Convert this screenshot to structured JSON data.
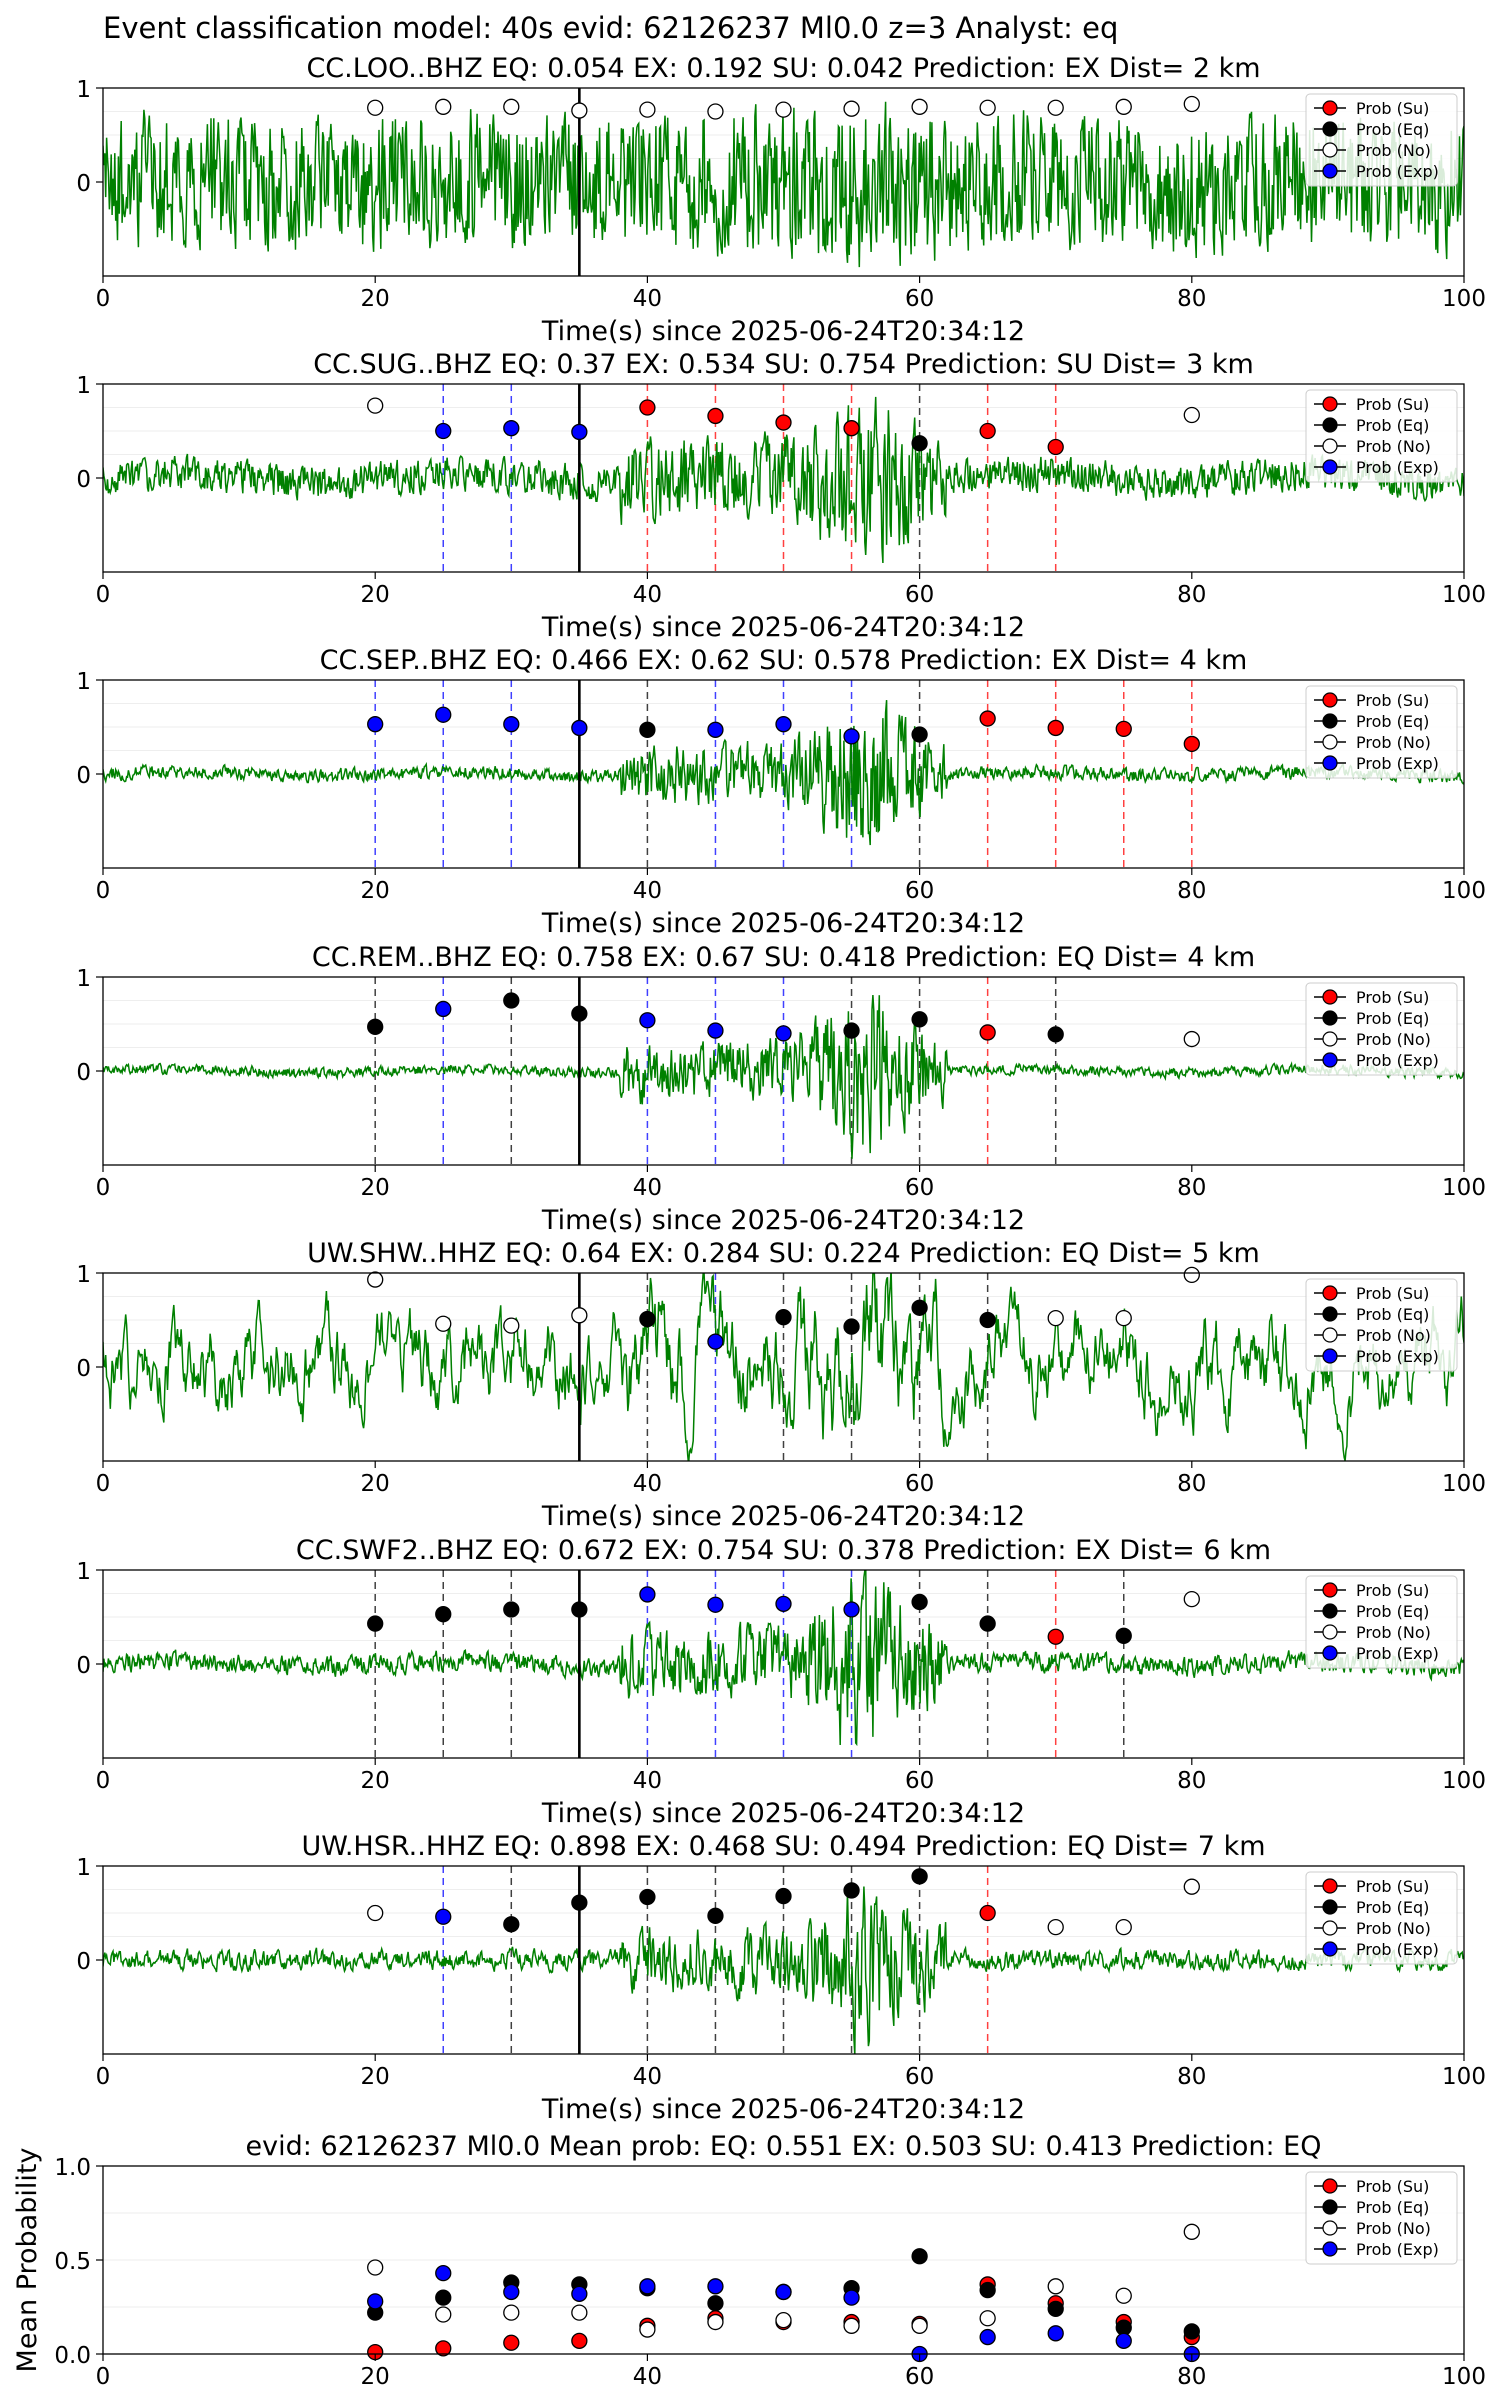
{
  "figure": {
    "suptitle": "Event classification model: 40s evid: 62126237 Ml0.0 z=3 Analyst: eq"
  },
  "chart_data": {
    "type": "line",
    "xlim": [
      0,
      100
    ],
    "xticks": [
      0,
      20,
      40,
      60,
      80,
      100
    ],
    "colors": {
      "Su": "#ff0000",
      "Eq": "#000000",
      "No": "#ffffff",
      "Exp": "#0000ff",
      "waveform": "#008000",
      "origin_line": "#000000"
    },
    "legend": {
      "position": "upper-right",
      "entries": [
        {
          "key": "Su",
          "label": "Prob (Su)"
        },
        {
          "key": "Eq",
          "label": "Prob (Eq)"
        },
        {
          "key": "No",
          "label": "Prob (No)"
        },
        {
          "key": "Exp",
          "label": "Prob (Exp)"
        }
      ]
    },
    "origin_time_s": 35,
    "station_panels": [
      {
        "title": "CC.LOO..BHZ   EQ: 0.054  EX: 0.192  SU: 0.042   Prediction: EX    Dist= 2 km",
        "xlabel": "Time(s) since 2025-06-24T20:34:12",
        "ylim": [
          -1,
          1
        ],
        "yticks": [
          0,
          1
        ],
        "waveform": {
          "noise": 0.75,
          "event": 0.15,
          "trend": 0.05,
          "smooth": 0.2
        },
        "points": [
          {
            "t": 20,
            "cls": "No",
            "p": 0.79
          },
          {
            "t": 25,
            "cls": "No",
            "p": 0.8
          },
          {
            "t": 30,
            "cls": "No",
            "p": 0.8
          },
          {
            "t": 35,
            "cls": "No",
            "p": 0.76
          },
          {
            "t": 40,
            "cls": "No",
            "p": 0.77
          },
          {
            "t": 45,
            "cls": "No",
            "p": 0.75
          },
          {
            "t": 50,
            "cls": "No",
            "p": 0.77
          },
          {
            "t": 55,
            "cls": "No",
            "p": 0.78
          },
          {
            "t": 60,
            "cls": "No",
            "p": 0.8
          },
          {
            "t": 65,
            "cls": "No",
            "p": 0.79
          },
          {
            "t": 70,
            "cls": "No",
            "p": 0.79
          },
          {
            "t": 75,
            "cls": "No",
            "p": 0.8
          },
          {
            "t": 80,
            "cls": "No",
            "p": 0.83
          }
        ]
      },
      {
        "title": "CC.SUG..BHZ   EQ: 0.37  EX: 0.534  SU: 0.754   Prediction: SU    Dist= 3 km",
        "xlabel": "Time(s) since 2025-06-24T20:34:12",
        "ylim": [
          -1,
          1
        ],
        "yticks": [
          0,
          1
        ],
        "waveform": {
          "noise": 0.2,
          "event": 0.55,
          "trend": 0.05,
          "smooth": 0.3
        },
        "points": [
          {
            "t": 20,
            "cls": "No",
            "p": 0.77
          },
          {
            "t": 25,
            "cls": "Exp",
            "p": 0.5
          },
          {
            "t": 30,
            "cls": "Exp",
            "p": 0.53
          },
          {
            "t": 35,
            "cls": "Exp",
            "p": 0.49
          },
          {
            "t": 40,
            "cls": "Su",
            "p": 0.75
          },
          {
            "t": 45,
            "cls": "Su",
            "p": 0.66
          },
          {
            "t": 50,
            "cls": "Su",
            "p": 0.59
          },
          {
            "t": 55,
            "cls": "Su",
            "p": 0.53
          },
          {
            "t": 60,
            "cls": "Eq",
            "p": 0.37
          },
          {
            "t": 65,
            "cls": "Su",
            "p": 0.5
          },
          {
            "t": 70,
            "cls": "Su",
            "p": 0.33
          },
          {
            "t": 80,
            "cls": "No",
            "p": 0.67
          }
        ]
      },
      {
        "title": "CC.SEP..BHZ   EQ: 0.466  EX: 0.62  SU: 0.578   Prediction: EX    Dist= 4 km",
        "xlabel": "Time(s) since 2025-06-24T20:34:12",
        "ylim": [
          -1,
          1
        ],
        "yticks": [
          0,
          1
        ],
        "waveform": {
          "noise": 0.08,
          "event": 0.6,
          "trend": 0.02,
          "smooth": 0.35
        },
        "points": [
          {
            "t": 20,
            "cls": "Exp",
            "p": 0.53
          },
          {
            "t": 25,
            "cls": "Exp",
            "p": 0.63
          },
          {
            "t": 30,
            "cls": "Exp",
            "p": 0.53
          },
          {
            "t": 35,
            "cls": "Exp",
            "p": 0.49
          },
          {
            "t": 40,
            "cls": "Eq",
            "p": 0.47
          },
          {
            "t": 45,
            "cls": "Exp",
            "p": 0.47
          },
          {
            "t": 50,
            "cls": "Exp",
            "p": 0.53
          },
          {
            "t": 55,
            "cls": "Exp",
            "p": 0.4
          },
          {
            "t": 60,
            "cls": "Eq",
            "p": 0.42
          },
          {
            "t": 65,
            "cls": "Su",
            "p": 0.59
          },
          {
            "t": 70,
            "cls": "Su",
            "p": 0.49
          },
          {
            "t": 75,
            "cls": "Su",
            "p": 0.48
          },
          {
            "t": 80,
            "cls": "Su",
            "p": 0.32
          }
        ]
      },
      {
        "title": "CC.REM..BHZ   EQ: 0.758  EX: 0.67  SU: 0.418   Prediction: EQ    Dist= 4 km",
        "xlabel": "Time(s) since 2025-06-24T20:34:12",
        "ylim": [
          -1,
          1
        ],
        "yticks": [
          0,
          1
        ],
        "waveform": {
          "noise": 0.06,
          "event": 0.65,
          "trend": 0.02,
          "smooth": 0.35
        },
        "points": [
          {
            "t": 20,
            "cls": "Eq",
            "p": 0.47
          },
          {
            "t": 25,
            "cls": "Exp",
            "p": 0.66
          },
          {
            "t": 30,
            "cls": "Eq",
            "p": 0.75
          },
          {
            "t": 35,
            "cls": "Eq",
            "p": 0.61
          },
          {
            "t": 40,
            "cls": "Exp",
            "p": 0.54
          },
          {
            "t": 45,
            "cls": "Exp",
            "p": 0.43
          },
          {
            "t": 50,
            "cls": "Exp",
            "p": 0.4
          },
          {
            "t": 55,
            "cls": "Eq",
            "p": 0.43
          },
          {
            "t": 60,
            "cls": "Eq",
            "p": 0.55
          },
          {
            "t": 65,
            "cls": "Su",
            "p": 0.41
          },
          {
            "t": 70,
            "cls": "Eq",
            "p": 0.39
          },
          {
            "t": 80,
            "cls": "No",
            "p": 0.34
          }
        ]
      },
      {
        "title": "UW.SHW..HHZ   EQ: 0.64  EX: 0.284  SU: 0.224   Prediction: EQ    Dist= 5 km",
        "xlabel": "Time(s) since 2025-06-24T20:34:12",
        "ylim": [
          -1,
          1
        ],
        "yticks": [
          0,
          1
        ],
        "waveform": {
          "noise": 0.55,
          "event": 0.35,
          "trend": 0.0,
          "smooth": 0.85
        },
        "points": [
          {
            "t": 20,
            "cls": "No",
            "p": 0.93
          },
          {
            "t": 25,
            "cls": "No",
            "p": 0.46
          },
          {
            "t": 30,
            "cls": "No",
            "p": 0.44
          },
          {
            "t": 35,
            "cls": "No",
            "p": 0.55
          },
          {
            "t": 40,
            "cls": "Eq",
            "p": 0.51
          },
          {
            "t": 45,
            "cls": "Exp",
            "p": 0.27
          },
          {
            "t": 50,
            "cls": "Eq",
            "p": 0.53
          },
          {
            "t": 55,
            "cls": "Eq",
            "p": 0.43
          },
          {
            "t": 60,
            "cls": "Eq",
            "p": 0.63
          },
          {
            "t": 65,
            "cls": "Eq",
            "p": 0.5
          },
          {
            "t": 70,
            "cls": "No",
            "p": 0.52
          },
          {
            "t": 75,
            "cls": "No",
            "p": 0.52
          },
          {
            "t": 80,
            "cls": "No",
            "p": 0.98
          }
        ]
      },
      {
        "title": "CC.SWF2..BHZ   EQ: 0.672  EX: 0.754  SU: 0.378   Prediction: EX    Dist= 6 km",
        "xlabel": "Time(s) since 2025-06-24T20:34:12",
        "ylim": [
          -1,
          1
        ],
        "yticks": [
          0,
          1
        ],
        "waveform": {
          "noise": 0.12,
          "event": 0.65,
          "trend": 0.03,
          "smooth": 0.4
        },
        "points": [
          {
            "t": 20,
            "cls": "Eq",
            "p": 0.43
          },
          {
            "t": 25,
            "cls": "Eq",
            "p": 0.53
          },
          {
            "t": 30,
            "cls": "Eq",
            "p": 0.58
          },
          {
            "t": 35,
            "cls": "Eq",
            "p": 0.58
          },
          {
            "t": 40,
            "cls": "Exp",
            "p": 0.74
          },
          {
            "t": 45,
            "cls": "Exp",
            "p": 0.63
          },
          {
            "t": 50,
            "cls": "Exp",
            "p": 0.64
          },
          {
            "t": 55,
            "cls": "Exp",
            "p": 0.58
          },
          {
            "t": 60,
            "cls": "Eq",
            "p": 0.66
          },
          {
            "t": 65,
            "cls": "Eq",
            "p": 0.43
          },
          {
            "t": 70,
            "cls": "Su",
            "p": 0.29
          },
          {
            "t": 75,
            "cls": "Eq",
            "p": 0.3
          },
          {
            "t": 80,
            "cls": "No",
            "p": 0.69
          }
        ]
      },
      {
        "title": "UW.HSR..HHZ   EQ: 0.898  EX: 0.468  SU: 0.494   Prediction: EQ    Dist= 7 km",
        "xlabel": "Time(s) since 2025-06-24T20:34:12",
        "ylim": [
          -1,
          1
        ],
        "yticks": [
          0,
          1
        ],
        "waveform": {
          "noise": 0.12,
          "event": 0.6,
          "trend": 0.0,
          "smooth": 0.5
        },
        "points": [
          {
            "t": 20,
            "cls": "No",
            "p": 0.5
          },
          {
            "t": 25,
            "cls": "Exp",
            "p": 0.46
          },
          {
            "t": 30,
            "cls": "Eq",
            "p": 0.38
          },
          {
            "t": 35,
            "cls": "Eq",
            "p": 0.61
          },
          {
            "t": 40,
            "cls": "Eq",
            "p": 0.67
          },
          {
            "t": 45,
            "cls": "Eq",
            "p": 0.47
          },
          {
            "t": 50,
            "cls": "Eq",
            "p": 0.68
          },
          {
            "t": 55,
            "cls": "Eq",
            "p": 0.74
          },
          {
            "t": 60,
            "cls": "Eq",
            "p": 0.89
          },
          {
            "t": 65,
            "cls": "Su",
            "p": 0.5
          },
          {
            "t": 70,
            "cls": "No",
            "p": 0.35
          },
          {
            "t": 75,
            "cls": "No",
            "p": 0.35
          },
          {
            "t": 80,
            "cls": "No",
            "p": 0.78
          }
        ]
      }
    ],
    "mean_panel": {
      "title": "evid: 62126237  Ml0.0   Mean prob:   EQ: 0.551  EX: 0.503  SU: 0.413   Prediction: EQ",
      "ylabel": "Mean Probability",
      "ylim": [
        0,
        1
      ],
      "yticks": [
        "0.0",
        "0.5",
        "1.0"
      ],
      "x": [
        20,
        25,
        30,
        35,
        40,
        45,
        50,
        55,
        60,
        65,
        70,
        75,
        80
      ],
      "series": [
        {
          "key": "Su",
          "name": "Prob (Su)",
          "values": [
            0.01,
            0.03,
            0.06,
            0.07,
            0.15,
            0.19,
            0.17,
            0.17,
            0.16,
            0.37,
            0.27,
            0.17,
            0.09
          ]
        },
        {
          "key": "Eq",
          "name": "Prob (Eq)",
          "values": [
            0.22,
            0.3,
            0.38,
            0.37,
            0.35,
            0.27,
            0.33,
            0.35,
            0.52,
            0.34,
            0.24,
            0.14,
            0.12
          ]
        },
        {
          "key": "No",
          "name": "Prob (No)",
          "values": [
            0.46,
            0.21,
            0.22,
            0.22,
            0.13,
            0.17,
            0.18,
            0.15,
            0.15,
            0.19,
            0.36,
            0.31,
            0.65
          ]
        },
        {
          "key": "Exp",
          "name": "Prob (Exp)",
          "values": [
            0.28,
            0.43,
            0.33,
            0.32,
            0.36,
            0.36,
            0.33,
            0.3,
            0.0,
            0.09,
            0.11,
            0.07,
            0.0
          ]
        }
      ]
    }
  }
}
